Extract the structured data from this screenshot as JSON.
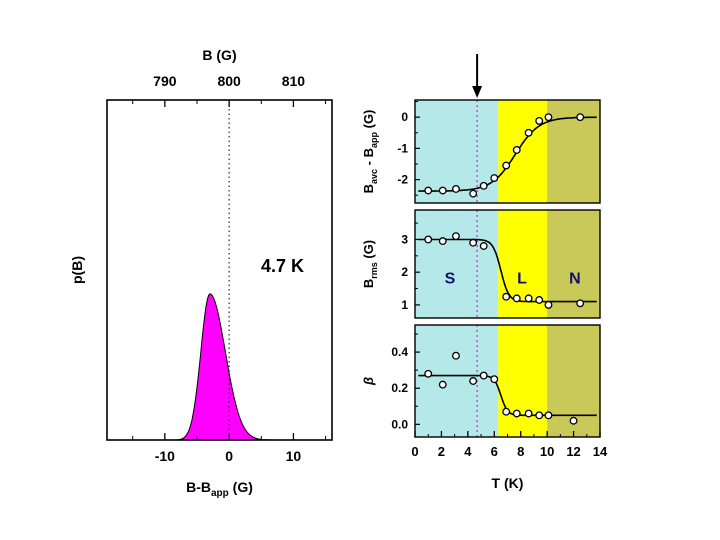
{
  "figure": {
    "background": "#ffffff"
  },
  "chart_data": [
    {
      "id": "field-distribution",
      "type": "area",
      "ylabel": "p(B)",
      "xlabel_parts": [
        {
          "t": "B-B"
        },
        {
          "t": "app",
          "sub": true
        },
        {
          "t": " (G)"
        }
      ],
      "top_label": "B (G)",
      "top_ticks": [
        790,
        800,
        810
      ],
      "top_axis_offset": 800,
      "bottom_ticks": [
        -10,
        0,
        10
      ],
      "xlim": [
        -19,
        16
      ],
      "minor_tick_step": 5,
      "annotation": "4.7 K",
      "ref_line_x": 0,
      "peak": {
        "center": -3,
        "height_frac": 0.43,
        "sigma_left": 1.4,
        "sigma_right": 2.4
      },
      "fill_color": "#ff00ff",
      "line_color": "#000000"
    },
    {
      "id": "temperature-dependence",
      "type": "scatter",
      "xlabel": "T (K)",
      "xlim": [
        0,
        14
      ],
      "x_ticks": [
        0,
        2,
        4,
        6,
        8,
        10,
        12,
        14
      ],
      "x_minor_step": 1,
      "arrow_x": 4.7,
      "ref_line_x": 4.7,
      "ref_line_color": "#cc00cc",
      "regions": [
        {
          "label": "S",
          "from": 0,
          "to": 6.3,
          "color": "#b5e8e8"
        },
        {
          "label": "L",
          "from": 6.3,
          "to": 10,
          "color": "#ffff00"
        },
        {
          "label": "N",
          "from": 10,
          "to": 14,
          "color": "#c9c95a"
        }
      ],
      "region_label_color": "#10106e",
      "region_label_panel": 1,
      "region_label_y": 1.65,
      "region_label_x": [
        2.65,
        8.1,
        12.1
      ],
      "panels": [
        {
          "ylabel_parts": [
            {
              "t": "B"
            },
            {
              "t": "avc",
              "sub": true
            },
            {
              "t": " - B"
            },
            {
              "t": "app",
              "sub": true
            },
            {
              "t": " (G)"
            }
          ],
          "ylim": [
            -2.75,
            0.55
          ],
          "yticks": [
            0,
            -1,
            -2
          ],
          "ytick_labels": [
            "0",
            "-1",
            "-2"
          ],
          "y_minor_step": 0.5,
          "points_x": [
            1.0,
            2.1,
            3.1,
            4.4,
            5.2,
            6.0,
            6.9,
            7.7,
            8.6,
            9.4,
            10.1,
            12.5
          ],
          "points_y": [
            -2.35,
            -2.35,
            -2.3,
            -2.45,
            -2.2,
            -1.95,
            -1.55,
            -1.05,
            -0.5,
            -0.12,
            0.0,
            0.0
          ],
          "curve": {
            "left": -2.37,
            "right": 0.0,
            "center": 7.6,
            "width": 0.9
          }
        },
        {
          "ylabel_parts": [
            {
              "t": "B"
            },
            {
              "t": "rms",
              "sub": true
            },
            {
              "t": " (G)"
            }
          ],
          "ylim": [
            0.6,
            3.9
          ],
          "yticks": [
            1,
            2,
            3
          ],
          "ytick_labels": [
            "1",
            "2",
            "3"
          ],
          "y_minor_step": 0.5,
          "points_x": [
            1.0,
            2.1,
            3.1,
            4.4,
            5.2,
            6.9,
            7.7,
            8.6,
            9.4,
            10.1,
            12.5
          ],
          "points_y": [
            3.0,
            2.95,
            3.1,
            2.9,
            2.8,
            1.25,
            1.2,
            1.2,
            1.15,
            1.0,
            1.05
          ],
          "curve": {
            "left": 3.0,
            "right": 1.1,
            "center": 6.5,
            "width": 0.3
          }
        },
        {
          "ylabel_parts": [
            {
              "t": "β",
              "italic": true
            }
          ],
          "ylim": [
            -0.07,
            0.55
          ],
          "yticks": [
            0,
            0.2,
            0.4
          ],
          "ytick_labels": [
            "0.0",
            "0.2",
            "0.4"
          ],
          "y_minor_step": 0.1,
          "points_x": [
            1.0,
            2.1,
            3.1,
            4.4,
            5.2,
            6.0,
            6.9,
            7.7,
            8.6,
            9.4,
            10.1,
            12.0
          ],
          "points_y": [
            0.28,
            0.22,
            0.38,
            0.24,
            0.27,
            0.25,
            0.07,
            0.06,
            0.06,
            0.05,
            0.05,
            0.02
          ],
          "curve": {
            "left": 0.27,
            "right": 0.05,
            "center": 6.5,
            "width": 0.25
          }
        }
      ]
    }
  ]
}
